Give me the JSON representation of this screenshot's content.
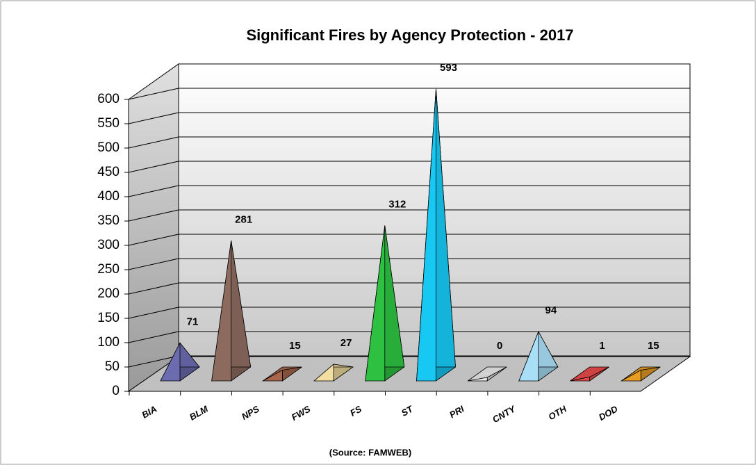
{
  "chart_data": {
    "type": "pyramid3d",
    "title": "Significant Fires by Agency Protection - 2017",
    "categories": [
      "BIA",
      "BLM",
      "NPS",
      "FWS",
      "FS",
      "ST",
      "PRI",
      "CNTY",
      "OTH",
      "DOD"
    ],
    "values": [
      71,
      281,
      15,
      27,
      312,
      593,
      0,
      94,
      1,
      15
    ],
    "colors": [
      "#6b6bb0",
      "#8c6a5e",
      "#a8674c",
      "#f2dea0",
      "#2ec040",
      "#16c8f2",
      "#e8e8e8",
      "#a8def6",
      "#e84a4a",
      "#e89c22"
    ],
    "ylim": [
      0,
      600
    ],
    "yticks": [
      0,
      50,
      100,
      150,
      200,
      250,
      300,
      350,
      400,
      450,
      500,
      550,
      600
    ],
    "grid": true,
    "note": "(Source: FAMWEB)"
  }
}
